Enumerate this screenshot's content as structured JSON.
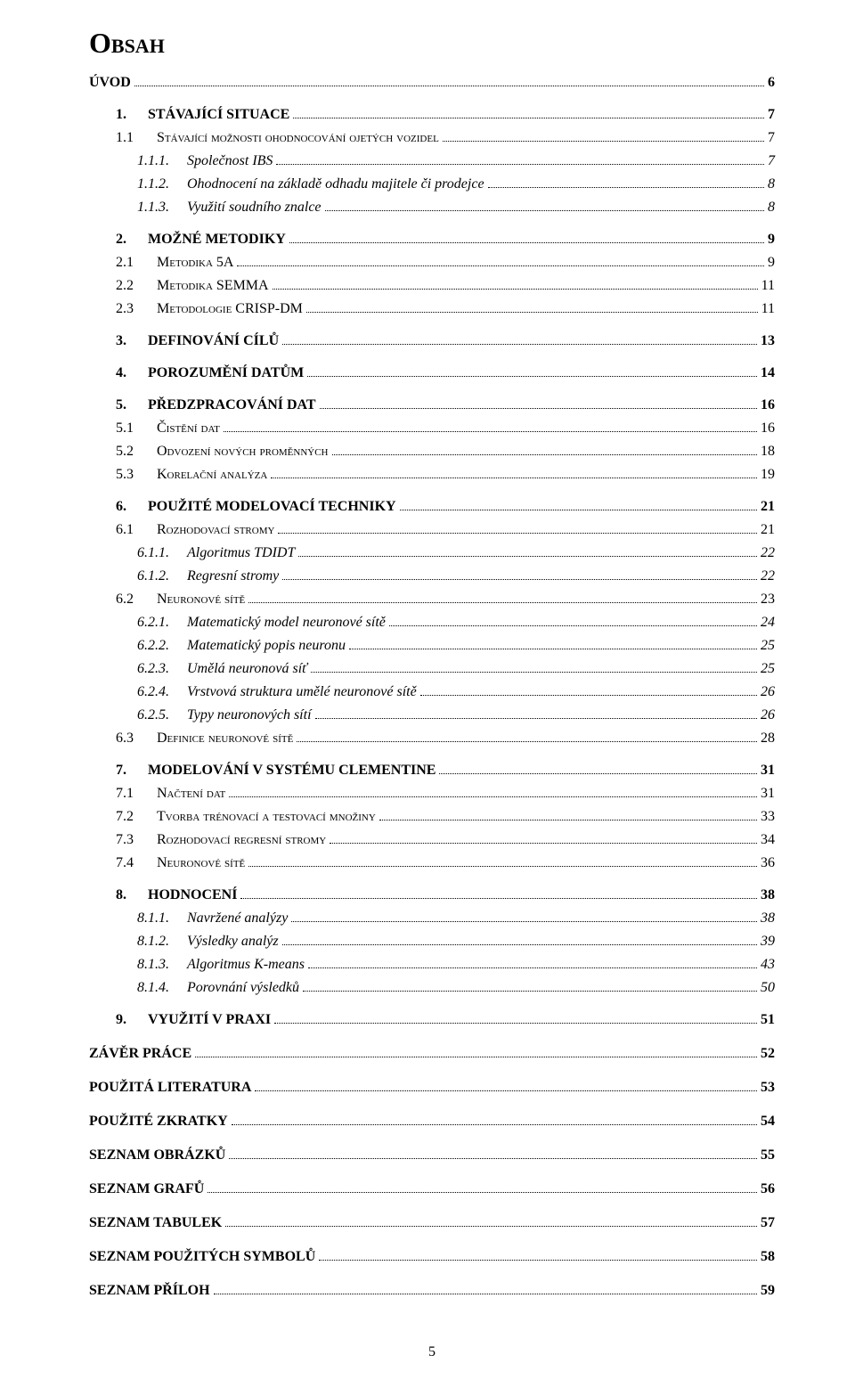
{
  "title": "Obsah",
  "page_number": "5",
  "entries": [
    {
      "level": 0,
      "num": "",
      "text": "ÚVOD",
      "page": "6"
    },
    {
      "level": 1,
      "num": "1.",
      "text": "STÁVAJÍCÍ SITUACE",
      "page": "7"
    },
    {
      "level": 2,
      "num": "1.1",
      "text": "Stávající možnosti ohodnocování ojetých vozidel",
      "page": "7"
    },
    {
      "level": 3,
      "num": "1.1.1.",
      "text": "Společnost IBS",
      "page": "7"
    },
    {
      "level": 3,
      "num": "1.1.2.",
      "text": "Ohodnocení na základě odhadu majitele či prodejce",
      "page": "8"
    },
    {
      "level": 3,
      "num": "1.1.3.",
      "text": "Využití soudního znalce",
      "page": "8"
    },
    {
      "level": 1,
      "num": "2.",
      "text": "MOŽNÉ METODIKY",
      "page": "9"
    },
    {
      "level": 2,
      "num": "2.1",
      "text": "Metodika 5A",
      "page": "9"
    },
    {
      "level": 2,
      "num": "2.2",
      "text": "Metodika SEMMA",
      "page": "11"
    },
    {
      "level": 2,
      "num": "2.3",
      "text": "Metodologie CRISP-DM",
      "page": "11"
    },
    {
      "level": 1,
      "num": "3.",
      "text": "DEFINOVÁNÍ CÍLŮ",
      "page": "13"
    },
    {
      "level": 1,
      "num": "4.",
      "text": "POROZUMĚNÍ DATŮM",
      "page": "14"
    },
    {
      "level": 1,
      "num": "5.",
      "text": "PŘEDZPRACOVÁNÍ DAT",
      "page": "16"
    },
    {
      "level": 2,
      "num": "5.1",
      "text": "Čistění dat",
      "page": "16"
    },
    {
      "level": 2,
      "num": "5.2",
      "text": "Odvození nových proměnných",
      "page": "18"
    },
    {
      "level": 2,
      "num": "5.3",
      "text": "Korelační analýza",
      "page": "19"
    },
    {
      "level": 1,
      "num": "6.",
      "text": "POUŽITÉ MODELOVACÍ TECHNIKY",
      "page": "21"
    },
    {
      "level": 2,
      "num": "6.1",
      "text": "Rozhodovací stromy",
      "page": "21"
    },
    {
      "level": 3,
      "num": "6.1.1.",
      "text": "Algoritmus TDIDT",
      "page": "22"
    },
    {
      "level": 3,
      "num": "6.1.2.",
      "text": "Regresní stromy",
      "page": "22"
    },
    {
      "level": 2,
      "num": "6.2",
      "text": "Neuronové sítě",
      "page": "23"
    },
    {
      "level": 3,
      "num": "6.2.1.",
      "text": "Matematický model neuronové sítě",
      "page": "24"
    },
    {
      "level": 3,
      "num": "6.2.2.",
      "text": "Matematický popis neuronu",
      "page": "25"
    },
    {
      "level": 3,
      "num": "6.2.3.",
      "text": "Umělá neuronová síť",
      "page": "25"
    },
    {
      "level": 3,
      "num": "6.2.4.",
      "text": "Vrstvová struktura umělé neuronové sítě",
      "page": "26"
    },
    {
      "level": 3,
      "num": "6.2.5.",
      "text": "Typy neuronových sítí",
      "page": "26"
    },
    {
      "level": 2,
      "num": "6.3",
      "text": "Definice neuronové sítě",
      "page": "28"
    },
    {
      "level": 1,
      "num": "7.",
      "text": "MODELOVÁNÍ V SYSTÉMU CLEMENTINE",
      "page": "31"
    },
    {
      "level": 2,
      "num": "7.1",
      "text": "Načtení dat",
      "page": "31"
    },
    {
      "level": 2,
      "num": "7.2",
      "text": "Tvorba trénovací a testovací množiny",
      "page": "33"
    },
    {
      "level": 2,
      "num": "7.3",
      "text": "Rozhodovací regresní stromy",
      "page": "34"
    },
    {
      "level": 2,
      "num": "7.4",
      "text": "Neuronové sítě",
      "page": "36"
    },
    {
      "level": 1,
      "num": "8.",
      "text": "HODNOCENÍ",
      "page": "38"
    },
    {
      "level": 3,
      "num": "8.1.1.",
      "text": "Navržené analýzy",
      "page": "38"
    },
    {
      "level": 3,
      "num": "8.1.2.",
      "text": "Výsledky analýz",
      "page": "39"
    },
    {
      "level": 3,
      "num": "8.1.3.",
      "text": "Algoritmus K-means",
      "page": "43"
    },
    {
      "level": 3,
      "num": "8.1.4.",
      "text": "Porovnání výsledků",
      "page": "50"
    },
    {
      "level": 1,
      "num": "9.",
      "text": "VYUŽITÍ V PRAXI",
      "page": "51"
    },
    {
      "level": 0,
      "num": "",
      "text": "ZÁVĚR PRÁCE",
      "page": "52"
    },
    {
      "level": 0,
      "num": "",
      "text": "POUŽITÁ LITERATURA",
      "page": "53"
    },
    {
      "level": 0,
      "num": "",
      "text": "POUŽITÉ ZKRATKY",
      "page": "54"
    },
    {
      "level": 0,
      "num": "",
      "text": "SEZNAM OBRÁZKŮ",
      "page": "55"
    },
    {
      "level": 0,
      "num": "",
      "text": "SEZNAM GRAFŮ",
      "page": "56"
    },
    {
      "level": 0,
      "num": "",
      "text": "SEZNAM TABULEK",
      "page": "57"
    },
    {
      "level": 0,
      "num": "",
      "text": "SEZNAM POUŽITÝCH SYMBOLŮ",
      "page": "58"
    },
    {
      "level": 0,
      "num": "",
      "text": "SEZNAM PŘÍLOH",
      "page": "59"
    }
  ]
}
